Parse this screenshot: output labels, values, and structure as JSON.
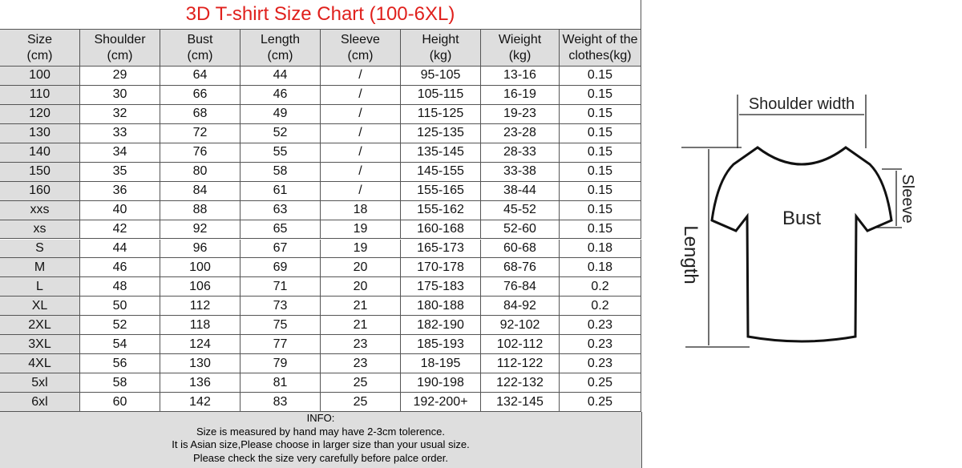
{
  "header": {
    "title": "3D T-shirt Size Chart (100-6XL)"
  },
  "table": {
    "columns": [
      [
        "Size",
        "(cm)"
      ],
      [
        "Shoulder",
        "(cm)"
      ],
      [
        "Bust",
        "(cm)"
      ],
      [
        "Length",
        "(cm)"
      ],
      [
        "Sleeve",
        "(cm)"
      ],
      [
        "Height",
        "(kg)"
      ],
      [
        "Wieight",
        "(kg)"
      ],
      [
        "Weight of the",
        "clothes(kg)"
      ]
    ],
    "rows": [
      [
        "100",
        "29",
        "64",
        "44",
        "/",
        "95-105",
        "13-16",
        "0.15"
      ],
      [
        "110",
        "30",
        "66",
        "46",
        "/",
        "105-115",
        "16-19",
        "0.15"
      ],
      [
        "120",
        "32",
        "68",
        "49",
        "/",
        "115-125",
        "19-23",
        "0.15"
      ],
      [
        "130",
        "33",
        "72",
        "52",
        "/",
        "125-135",
        "23-28",
        "0.15"
      ],
      [
        "140",
        "34",
        "76",
        "55",
        "/",
        "135-145",
        "28-33",
        "0.15"
      ],
      [
        "150",
        "35",
        "80",
        "58",
        "/",
        "145-155",
        "33-38",
        "0.15"
      ],
      [
        "160",
        "36",
        "84",
        "61",
        "/",
        "155-165",
        "38-44",
        "0.15"
      ],
      [
        "xxs",
        "40",
        "88",
        "63",
        "18",
        "155-162",
        "45-52",
        "0.15"
      ],
      [
        "xs",
        "42",
        "92",
        "65",
        "19",
        "160-168",
        "52-60",
        "0.15"
      ],
      [
        "S",
        "44",
        "96",
        "67",
        "19",
        "165-173",
        "60-68",
        "0.18"
      ],
      [
        "M",
        "46",
        "100",
        "69",
        "20",
        "170-178",
        "68-76",
        "0.18"
      ],
      [
        "L",
        "48",
        "106",
        "71",
        "20",
        "175-183",
        "76-84",
        "0.2"
      ],
      [
        "XL",
        "50",
        "112",
        "73",
        "21",
        "180-188",
        "84-92",
        "0.2"
      ],
      [
        "2XL",
        "52",
        "118",
        "75",
        "21",
        "182-190",
        "92-102",
        "0.23"
      ],
      [
        "3XL",
        "54",
        "124",
        "77",
        "23",
        "185-193",
        "102-112",
        "0.23"
      ],
      [
        "4XL",
        "56",
        "130",
        "79",
        "23",
        "18-195",
        "112-122",
        "0.23"
      ],
      [
        "5xl",
        "58",
        "136",
        "81",
        "25",
        "190-198",
        "122-132",
        "0.25"
      ],
      [
        "6xl",
        "60",
        "142",
        "83",
        "25",
        "192-200+",
        "132-145",
        "0.25"
      ]
    ]
  },
  "info": [
    "INFO:",
    "Size is measured by hand may have 2-3cm tolerence.",
    "It is Asian size,Please choose in larger size than your usual size.",
    "Please check the size very carefully before palce order."
  ],
  "diagram": {
    "shoulder": "Shoulder width",
    "bust": "Bust",
    "length": "Length",
    "sleeve": "Sleeve"
  }
}
